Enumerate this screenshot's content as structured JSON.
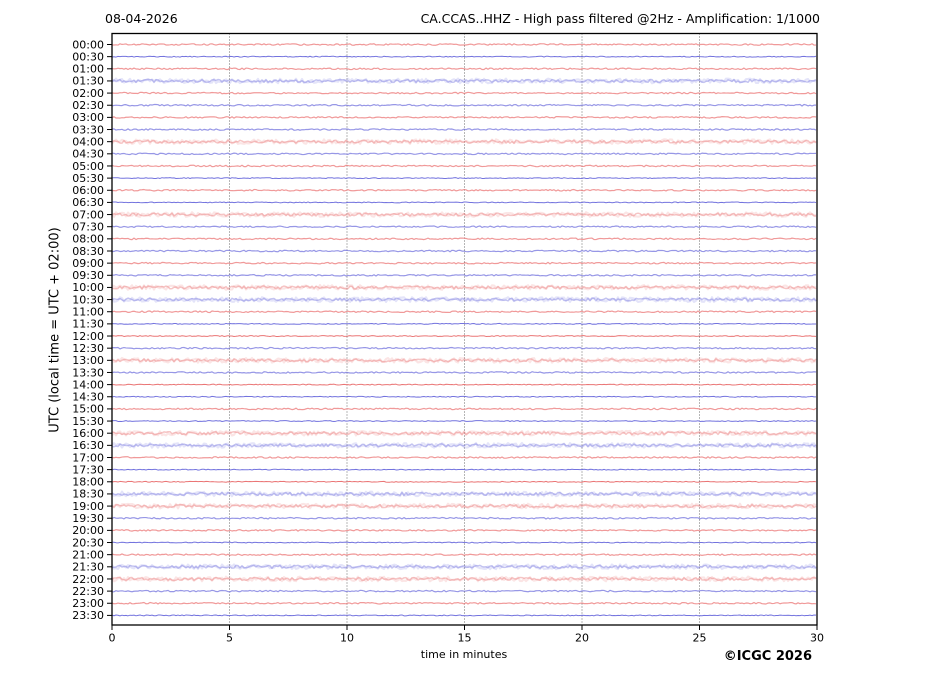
{
  "chart_data": {
    "type": "line",
    "subtype": "helicorder-seismogram",
    "date": "08-04-2026",
    "title": "CA.CCAS..HHZ - High pass filtered @2Hz - Amplification: 1/1000",
    "xlabel": "time in minutes",
    "ylabel": "UTC (local time = UTC + 02:00)",
    "copyright": "©ICGC 2026",
    "xlim": [
      0,
      30
    ],
    "xticks": [
      0,
      5,
      10,
      15,
      20,
      25,
      30
    ],
    "grid_x_minutes": [
      5,
      10,
      15,
      20,
      25
    ],
    "minutes_per_row": 30,
    "grid_on": true,
    "legend": "none",
    "colors": {
      "hour_trace": "#e96e6e",
      "half_hour_trace": "#6b6bdc",
      "grid": "#555555",
      "axis": "#000000",
      "background": "#ffffff"
    },
    "rows_note": "Each row is a 30-minute seismic trace, essentially flat background noise (no visible events). color=red on the hour, blue on the half hour. noise: 1=thin crisp line, 2=normal, 3=wide faint fuzzy band.",
    "rows": [
      {
        "time": "00:00",
        "color": "red",
        "noise": 2
      },
      {
        "time": "00:30",
        "color": "blue",
        "noise": 1
      },
      {
        "time": "01:00",
        "color": "red",
        "noise": 2
      },
      {
        "time": "01:30",
        "color": "blue",
        "noise": 3
      },
      {
        "time": "02:00",
        "color": "red",
        "noise": 2
      },
      {
        "time": "02:30",
        "color": "blue",
        "noise": 2
      },
      {
        "time": "03:00",
        "color": "red",
        "noise": 2
      },
      {
        "time": "03:30",
        "color": "blue",
        "noise": 2
      },
      {
        "time": "04:00",
        "color": "red",
        "noise": 3
      },
      {
        "time": "04:30",
        "color": "blue",
        "noise": 2
      },
      {
        "time": "05:00",
        "color": "red",
        "noise": 2
      },
      {
        "time": "05:30",
        "color": "blue",
        "noise": 1
      },
      {
        "time": "06:00",
        "color": "red",
        "noise": 2
      },
      {
        "time": "06:30",
        "color": "blue",
        "noise": 1
      },
      {
        "time": "07:00",
        "color": "red",
        "noise": 3
      },
      {
        "time": "07:30",
        "color": "blue",
        "noise": 2
      },
      {
        "time": "08:00",
        "color": "red",
        "noise": 2
      },
      {
        "time": "08:30",
        "color": "blue",
        "noise": 2
      },
      {
        "time": "09:00",
        "color": "red",
        "noise": 2
      },
      {
        "time": "09:30",
        "color": "blue",
        "noise": 2
      },
      {
        "time": "10:00",
        "color": "red",
        "noise": 3
      },
      {
        "time": "10:30",
        "color": "blue",
        "noise": 3
      },
      {
        "time": "11:00",
        "color": "red",
        "noise": 2
      },
      {
        "time": "11:30",
        "color": "blue",
        "noise": 1
      },
      {
        "time": "12:00",
        "color": "red",
        "noise": 1
      },
      {
        "time": "12:30",
        "color": "blue",
        "noise": 2
      },
      {
        "time": "13:00",
        "color": "red",
        "noise": 3
      },
      {
        "time": "13:30",
        "color": "blue",
        "noise": 2
      },
      {
        "time": "14:00",
        "color": "red",
        "noise": 1
      },
      {
        "time": "14:30",
        "color": "blue",
        "noise": 1
      },
      {
        "time": "15:00",
        "color": "red",
        "noise": 2
      },
      {
        "time": "15:30",
        "color": "blue",
        "noise": 1
      },
      {
        "time": "16:00",
        "color": "red",
        "noise": 3
      },
      {
        "time": "16:30",
        "color": "blue",
        "noise": 3
      },
      {
        "time": "17:00",
        "color": "red",
        "noise": 2
      },
      {
        "time": "17:30",
        "color": "blue",
        "noise": 1
      },
      {
        "time": "18:00",
        "color": "red",
        "noise": 1
      },
      {
        "time": "18:30",
        "color": "blue",
        "noise": 3
      },
      {
        "time": "19:00",
        "color": "red",
        "noise": 3
      },
      {
        "time": "19:30",
        "color": "blue",
        "noise": 2
      },
      {
        "time": "20:00",
        "color": "red",
        "noise": 2
      },
      {
        "time": "20:30",
        "color": "blue",
        "noise": 1
      },
      {
        "time": "21:00",
        "color": "red",
        "noise": 2
      },
      {
        "time": "21:30",
        "color": "blue",
        "noise": 3
      },
      {
        "time": "22:00",
        "color": "red",
        "noise": 3
      },
      {
        "time": "22:30",
        "color": "blue",
        "noise": 2
      },
      {
        "time": "23:00",
        "color": "red",
        "noise": 2
      },
      {
        "time": "23:30",
        "color": "blue",
        "noise": 1
      }
    ]
  }
}
